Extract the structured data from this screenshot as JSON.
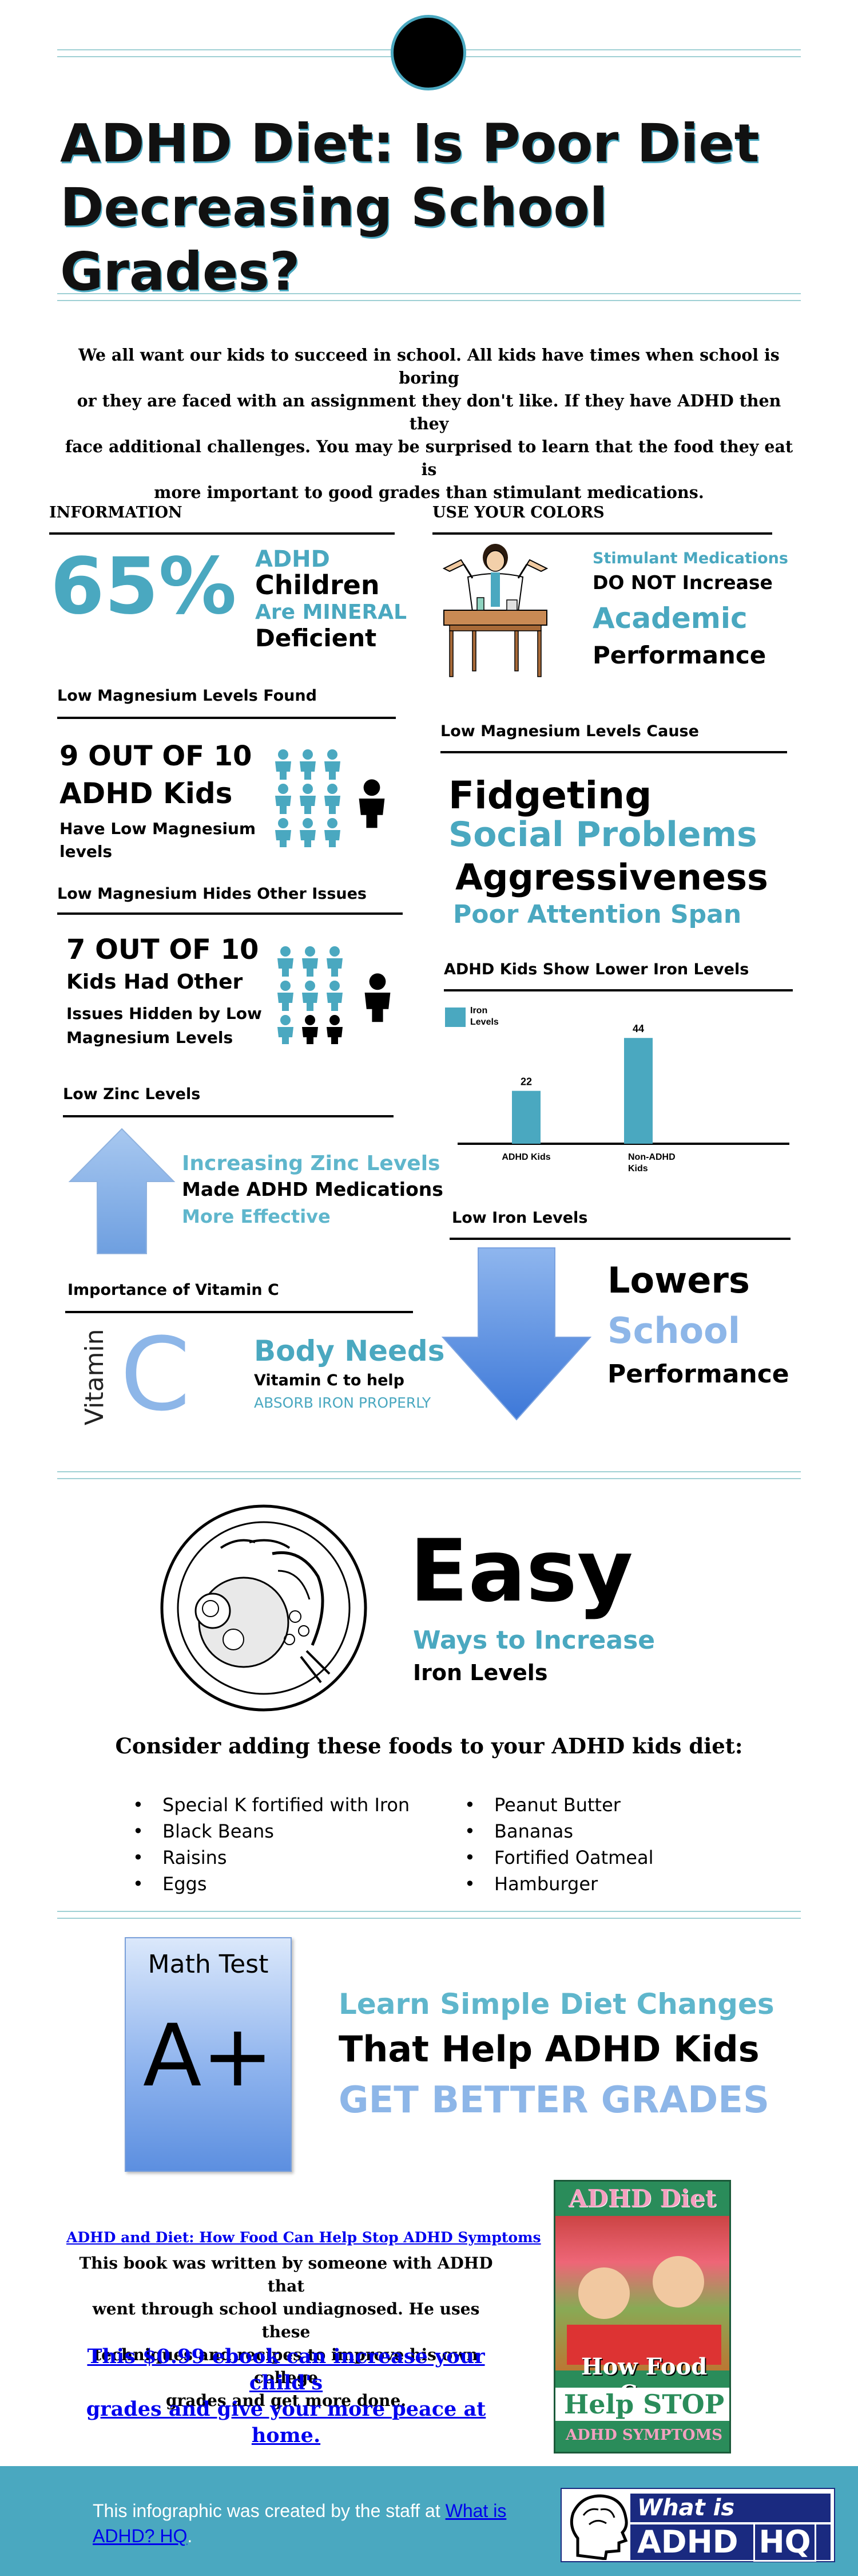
{
  "header": {
    "title_line1": "ADHD Diet: Is Poor Diet",
    "title_line2": "Decreasing School Grades?"
  },
  "intro": {
    "line1": "We all want our kids to succeed in school. All kids have times when school is boring",
    "line2": "or they are faced with an assignment they don't like. If they have ADHD then they",
    "line3": "face additional challenges. You may be surprised to learn that the food they eat is",
    "line4": "more important to good grades than stimulant medications."
  },
  "information": {
    "heading": "INFORMATION",
    "percent": "65%",
    "adhd": "ADHD",
    "children": "Children",
    "are_mineral": "Are MINERAL",
    "deficient": "Deficient"
  },
  "colors_section": {
    "heading": "USE YOUR COLORS",
    "stimulant": "Stimulant Medications",
    "do_not": "DO NOT Increase",
    "academic": "Academic",
    "performance": "Performance"
  },
  "magnesium_found": {
    "heading": "Low Magnesium Levels Found",
    "stat": "9 OUT OF 10",
    "adhd_kids": "ADHD Kids",
    "have_low": "Have Low Magnesium",
    "levels": "levels"
  },
  "magnesium_cause": {
    "heading": "Low Magnesium Levels Cause",
    "fidgeting": "Fidgeting",
    "social": "Social Problems",
    "aggressiveness": "Aggressiveness",
    "poor_attention": "Poor Attention Span"
  },
  "magnesium_hides": {
    "heading": "Low Magnesium Hides Other Issues",
    "stat": "7 OUT OF 10",
    "kids_had": "Kids Had Other",
    "issues_hidden": "Issues Hidden by Low",
    "magnesium_levels": "Magnesium Levels"
  },
  "chart_data": {
    "type": "bar",
    "title": "ADHD Kids Show Lower Iron Levels",
    "categories": [
      "ADHD Kids",
      "Non-ADHD Kids"
    ],
    "series": [
      {
        "name": "Iron Levels",
        "values": [
          22,
          44
        ]
      }
    ],
    "ylim": [
      0,
      50
    ],
    "legend": "top-left",
    "grid": false,
    "color": "#4aa8c0"
  },
  "zinc": {
    "heading": "Low Zinc Levels",
    "increasing": "Increasing Zinc Levels",
    "made": "Made ADHD Medications",
    "more_effective": "More Effective"
  },
  "iron": {
    "heading": "Low Iron Levels",
    "lowers": "Lowers",
    "school": "School",
    "performance": "Performance"
  },
  "vitamin_c": {
    "heading": "Importance of Vitamin C",
    "vitamin": "Vitamin",
    "c": "C",
    "body_needs": "Body Needs",
    "to_help": "Vitamin C to help",
    "absorb": "ABSORB IRON PROPERLY"
  },
  "easy": {
    "easy": "Easy",
    "ways": "Ways to Increase",
    "iron_levels": "Iron Levels",
    "consider": "Consider adding these foods to your ADHD kids diet:",
    "foods_left": [
      "Special K fortified with Iron",
      "Black Beans",
      "Raisins",
      "Eggs"
    ],
    "foods_right": [
      "Peanut Butter",
      "Bananas",
      "Fortified Oatmeal",
      "Hamburger"
    ]
  },
  "math": {
    "math_test": "Math Test",
    "grade": "A+",
    "learn": "Learn Simple Diet Changes",
    "that_help": "That Help ADHD Kids",
    "better": "GET BETTER GRADES"
  },
  "book": {
    "link": "ADHD and Diet: How Food Can Help Stop ADHD Symptoms",
    "line1": "This book was written by someone with ADHD that",
    "line2": "went through school undiagnosed. He uses these",
    "line3": "techniques and recipes to improve his own college",
    "line4": "grades and get more done.",
    "offer1": "This $0.99 ebook can increase your child's",
    "offer2": "grades and give your more peace at home.",
    "cover_top": "ADHD Diet",
    "cover_mid": "How Food Can",
    "cover_help": "Help STOP",
    "cover_bottom": "ADHD SYMPTOMS"
  },
  "footer": {
    "created": "This infographic was created by the staff at",
    "link1": "What is",
    "link2": "ADHD? HQ",
    "period": ".",
    "logo_top": "What is",
    "logo_adhd": "ADHD",
    "logo_hq": "HQ"
  },
  "colors": {
    "teal": "#4aa8c0",
    "light_blue": "#8db6e8",
    "footer_bg": "#4aa8c0"
  }
}
